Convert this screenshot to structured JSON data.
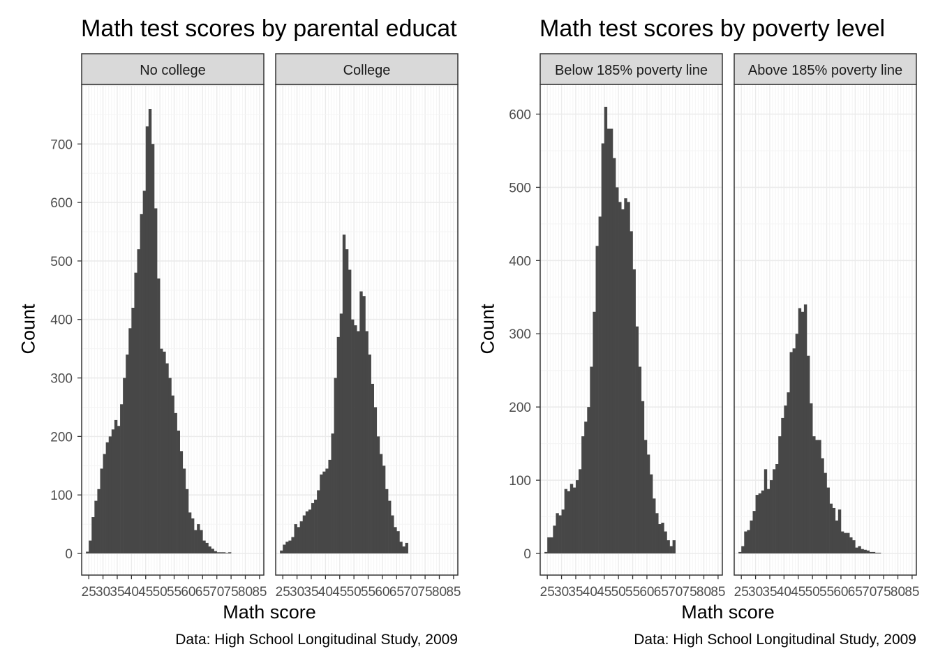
{
  "colors": {
    "bar": "#474747",
    "strip_fill": "#d9d9d9",
    "border": "#333333",
    "grid_major": "#ebebeb",
    "grid_minor": "#f4f4f4",
    "tick_text": "#4d4d4d"
  },
  "left_plot": {
    "title": "Math test scores by parental educat",
    "xlabel": "Math score",
    "ylabel": "Count",
    "caption": "Data: High School Longitudinal Study, 2009"
  },
  "right_plot": {
    "title": "Math test scores by poverty level",
    "xlabel": "Math score",
    "ylabel": "Count",
    "caption": "Data: High School Longitudinal Study, 2009"
  },
  "chart_data": [
    {
      "type": "bar",
      "subtype": "histogram",
      "title": "Math test scores by parental educat",
      "xlabel": "Math score",
      "ylabel": "Count",
      "caption": "Data: High School Longitudinal Study, 2009",
      "facets": [
        "No college",
        "College"
      ],
      "xlim": [
        22.5,
        86.5
      ],
      "ylim": [
        0,
        760
      ],
      "xticks": [
        25,
        30,
        35,
        40,
        45,
        50,
        55,
        60,
        65,
        70,
        75,
        80,
        85
      ],
      "yticks": [
        0,
        100,
        200,
        300,
        400,
        500,
        600,
        700
      ],
      "grid": true,
      "bin_start": 24,
      "bin_width": 1,
      "series": [
        {
          "facet": "No college",
          "values": [
            3,
            22,
            62,
            90,
            110,
            145,
            170,
            190,
            200,
            212,
            228,
            218,
            255,
            300,
            340,
            385,
            420,
            480,
            520,
            580,
            620,
            730,
            760,
            700,
            590,
            470,
            350,
            345,
            325,
            300,
            270,
            240,
            210,
            175,
            145,
            110,
            70,
            60,
            40,
            50,
            40,
            22,
            18,
            12,
            8,
            4,
            2,
            2,
            2,
            1,
            2
          ]
        },
        {
          "facet": "College",
          "values": [
            5,
            15,
            20,
            22,
            28,
            50,
            45,
            55,
            65,
            72,
            75,
            86,
            92,
            108,
            135,
            140,
            145,
            160,
            205,
            300,
            370,
            410,
            545,
            520,
            485,
            400,
            390,
            380,
            448,
            440,
            380,
            340,
            290,
            250,
            200,
            170,
            150,
            110,
            90,
            65,
            45,
            38,
            20,
            12,
            18
          ]
        }
      ]
    },
    {
      "type": "bar",
      "subtype": "histogram",
      "title": "Math test scores by poverty level",
      "xlabel": "Math score",
      "ylabel": "Count",
      "caption": "Data: High School Longitudinal Study, 2009",
      "facets": [
        "Below 185% poverty line",
        "Above 185% poverty line"
      ],
      "xlim": [
        22.5,
        86.5
      ],
      "ylim": [
        0,
        610
      ],
      "xticks": [
        25,
        30,
        35,
        40,
        45,
        50,
        55,
        60,
        65,
        70,
        75,
        80,
        85
      ],
      "yticks": [
        0,
        100,
        200,
        300,
        400,
        500,
        600
      ],
      "grid": true,
      "bin_start": 24,
      "bin_width": 1,
      "series": [
        {
          "facet": "Below 185% poverty line",
          "values": [
            2,
            22,
            22,
            38,
            55,
            52,
            60,
            88,
            85,
            95,
            90,
            100,
            115,
            160,
            180,
            200,
            255,
            330,
            420,
            460,
            560,
            610,
            580,
            580,
            540,
            500,
            480,
            470,
            485,
            480,
            440,
            388,
            310,
            255,
            208,
            155,
            135,
            108,
            75,
            55,
            40,
            42,
            30,
            18,
            10,
            18
          ]
        },
        {
          "facet": "Above 185% poverty line",
          "values": [
            2,
            10,
            30,
            32,
            45,
            58,
            80,
            82,
            86,
            115,
            88,
            100,
            115,
            122,
            160,
            185,
            202,
            220,
            275,
            280,
            300,
            335,
            330,
            340,
            270,
            205,
            160,
            155,
            155,
            130,
            110,
            90,
            68,
            62,
            45,
            60,
            30,
            28,
            28,
            22,
            18,
            8,
            10,
            6,
            5,
            4,
            2,
            2,
            1,
            1
          ]
        }
      ]
    }
  ]
}
